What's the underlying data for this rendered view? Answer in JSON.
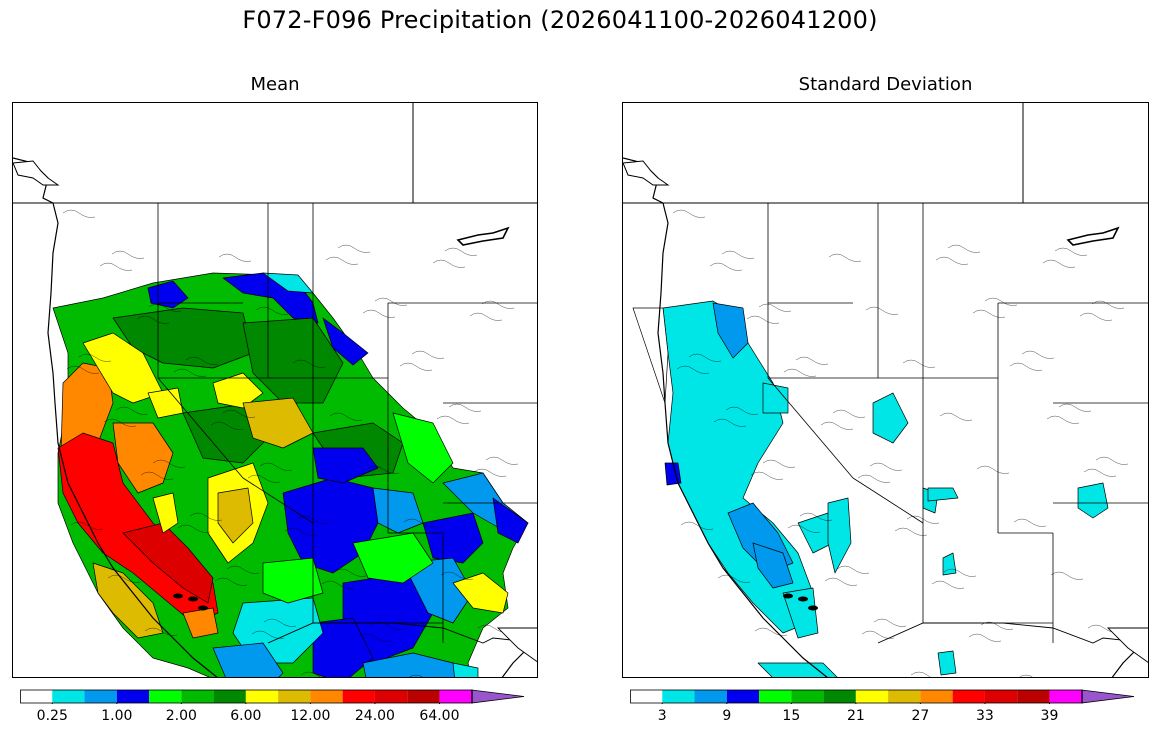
{
  "suptitle": "F072-F096 Precipitation (2026041100-2026041200)",
  "panels": [
    {
      "id": "mean",
      "title": "Mean",
      "colorbar": {
        "colors": [
          "#ffffff",
          "#00e5e5",
          "#0099ee",
          "#0000ee",
          "#00ff00",
          "#00bb00",
          "#008800",
          "#ffff00",
          "#ddbb00",
          "#ff8800",
          "#ff0000",
          "#dd0000",
          "#bb0000",
          "#ff00ff",
          "#9955cc"
        ],
        "extend": "max",
        "tick_labels": [
          "0.25",
          "1.00",
          "2.00",
          "6.00",
          "12.00",
          "24.00",
          "64.00"
        ]
      }
    },
    {
      "id": "stddev",
      "title": "Standard Deviation",
      "colorbar": {
        "colors": [
          "#ffffff",
          "#00e5e5",
          "#0099ee",
          "#0000ee",
          "#00ff00",
          "#00bb00",
          "#008800",
          "#ffff00",
          "#ddbb00",
          "#ff8800",
          "#ff0000",
          "#dd0000",
          "#bb0000",
          "#ff00ff",
          "#9955cc"
        ],
        "extend": "max",
        "tick_labels": [
          "3",
          "9",
          "15",
          "21",
          "27",
          "33",
          "39"
        ]
      }
    }
  ]
}
